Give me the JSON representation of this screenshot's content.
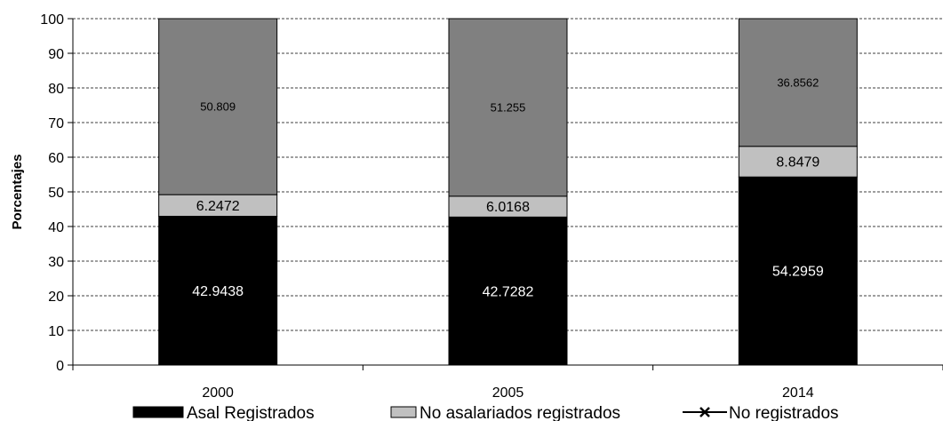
{
  "chart_data": {
    "type": "bar",
    "stacked": true,
    "categories": [
      "2000",
      "2005",
      "2014"
    ],
    "ylabel": "Porcentajes",
    "ylim": [
      0,
      100
    ],
    "yticks": [
      0,
      10,
      20,
      30,
      40,
      50,
      60,
      70,
      80,
      90,
      100
    ],
    "grid": true,
    "legend_position": "bottom",
    "series": [
      {
        "name": "Asal Registrados",
        "values": [
          42.9438,
          42.7282,
          54.2959
        ],
        "labels": [
          "42.9438",
          "42.7282",
          "54.2959"
        ],
        "color": "#000000",
        "label_color": "#ffffff"
      },
      {
        "name": "No asalariados registrados",
        "values": [
          6.2472,
          6.0168,
          8.8479
        ],
        "labels": [
          "6.2472",
          "6.0168",
          "8.8479"
        ],
        "color": "#c0c0c0",
        "label_color": "#000000"
      },
      {
        "name": "No registrados",
        "values": [
          50.809,
          51.255,
          36.8562
        ],
        "labels": [
          "50.809",
          "51.255",
          "36.8562"
        ],
        "color": "#808080",
        "label_color": "#000000"
      }
    ]
  }
}
